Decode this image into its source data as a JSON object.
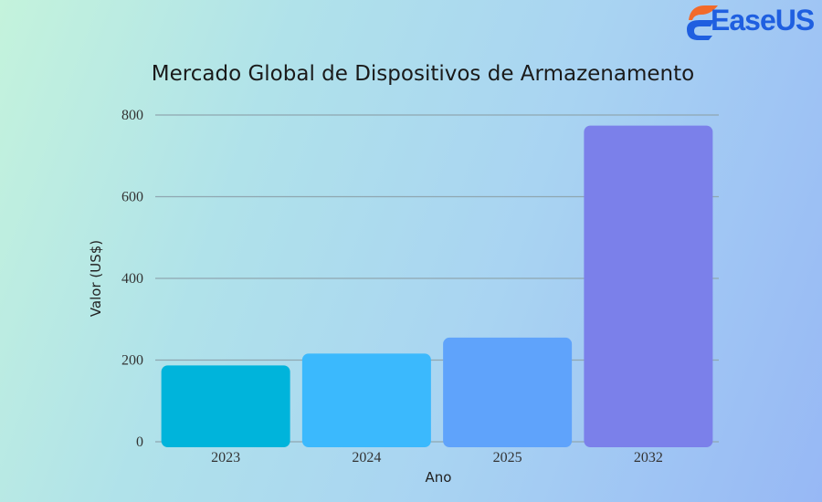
{
  "brand": "EaseUS",
  "chart_data": {
    "type": "bar",
    "title": "Mercado Global de Dispositivos de Armazenamento",
    "xlabel": "Ano",
    "ylabel": "Valor (US$)",
    "categories": [
      "2023",
      "2024",
      "2025",
      "2032"
    ],
    "values": [
      187,
      216,
      255,
      774
    ],
    "ylim": [
      0,
      800
    ],
    "yticks": [
      "0",
      "200",
      "400",
      "600",
      "800"
    ],
    "grid": true,
    "colors": [
      "#00b4db",
      "#3bb9fd",
      "#5fa3fb",
      "#7b80ea"
    ]
  }
}
